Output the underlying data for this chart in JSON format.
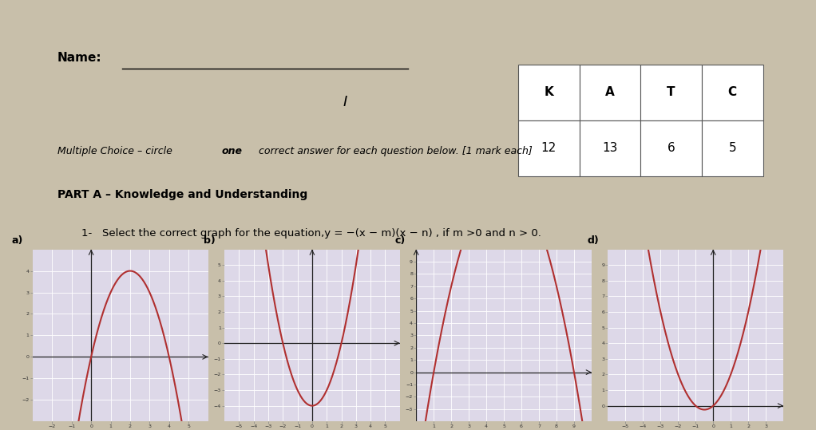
{
  "bg_color": "#c8bfaa",
  "paper_color": "#cec5b0",
  "graph_bg": "#ddd8e8",
  "curve_color": "#b03030",
  "name_label": "Name:",
  "table_headers": [
    "K",
    "A",
    "T",
    "C"
  ],
  "table_values": [
    "12",
    "13",
    "6",
    "5"
  ],
  "graphs": [
    {
      "label": "a)",
      "xlim": [
        -3,
        6
      ],
      "ylim": [
        -3,
        5
      ],
      "xticks": [
        -2,
        -1,
        0,
        1,
        2,
        3,
        4,
        5
      ],
      "yticks": [
        -2,
        -1,
        0,
        1,
        2,
        3,
        4
      ],
      "roots": [
        0,
        4
      ],
      "flip": true,
      "type": "inverted"
    },
    {
      "label": "b)",
      "xlim": [
        -6,
        6
      ],
      "ylim": [
        -5,
        6
      ],
      "xticks": [
        -5,
        -4,
        -3,
        -2,
        -1,
        0,
        1,
        2,
        3,
        4,
        5
      ],
      "yticks": [
        -4,
        -3,
        -2,
        -1,
        0,
        1,
        2,
        3,
        4,
        5
      ],
      "roots": [
        -2,
        2
      ],
      "flip": false,
      "type": "upward"
    },
    {
      "label": "c)",
      "xlim": [
        0,
        10
      ],
      "ylim": [
        -4,
        10
      ],
      "xticks": [
        1,
        2,
        3,
        4,
        5,
        6,
        7,
        8,
        9
      ],
      "yticks": [
        -3,
        -2,
        -1,
        0,
        1,
        2,
        3,
        4,
        5,
        6,
        7,
        8,
        9
      ],
      "roots": [
        1,
        9
      ],
      "flip": true,
      "type": "inverted"
    },
    {
      "label": "d)",
      "xlim": [
        -6,
        4
      ],
      "ylim": [
        -1,
        10
      ],
      "xticks": [
        -5,
        -4,
        -3,
        -2,
        -1,
        0,
        1,
        2,
        3
      ],
      "yticks": [
        0,
        1,
        2,
        3,
        4,
        5,
        6,
        7,
        8,
        9
      ],
      "roots": [
        -1,
        -1
      ],
      "flip": false,
      "type": "upward_narrow"
    }
  ]
}
